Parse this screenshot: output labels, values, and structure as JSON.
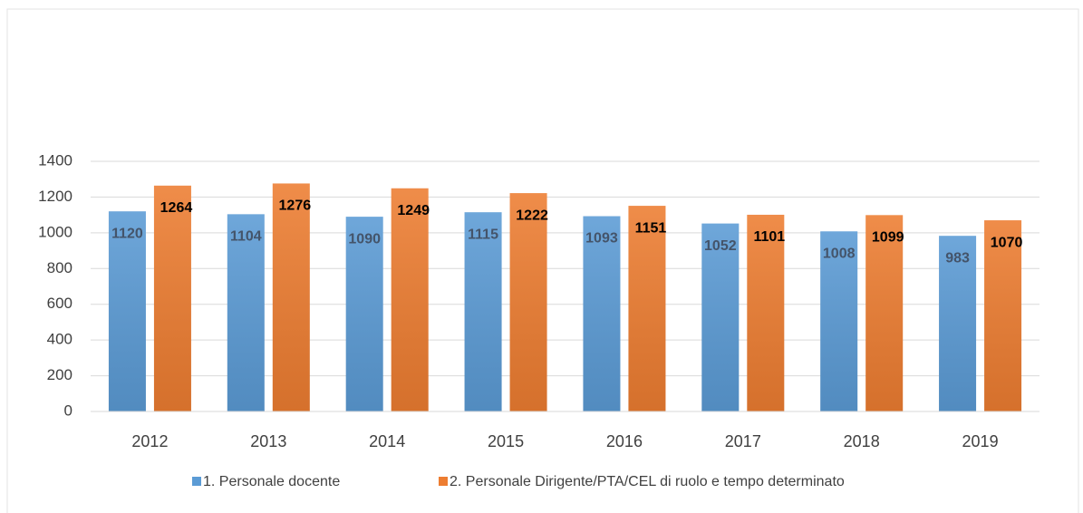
{
  "chart_data": {
    "type": "bar",
    "categories": [
      "2012",
      "2013",
      "2014",
      "2015",
      "2016",
      "2017",
      "2018",
      "2019"
    ],
    "series": [
      {
        "name": "1. Personale docente",
        "color": "#5b9bd5",
        "values": [
          1120,
          1104,
          1090,
          1115,
          1093,
          1052,
          1008,
          983
        ]
      },
      {
        "name": "2. Personale Dirigente/PTA/CEL di ruolo e tempo determinato",
        "color": "#ed7d31",
        "values": [
          1264,
          1276,
          1249,
          1222,
          1151,
          1101,
          1099,
          1070
        ]
      }
    ],
    "ylim": [
      0,
      1400
    ],
    "yticks": [
      0,
      200,
      400,
      600,
      800,
      1000,
      1200,
      1400
    ],
    "grid": true,
    "legend": "bottom"
  }
}
